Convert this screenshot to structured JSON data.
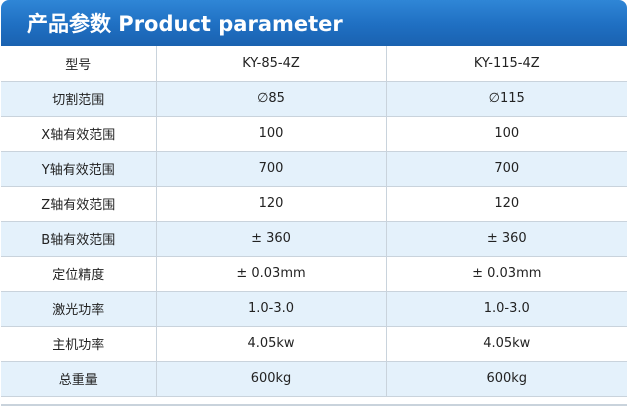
{
  "title": "产品参数 Product parameter",
  "table": {
    "header": [
      "型号",
      "KY-85-4Z",
      "KY-115-4Z"
    ],
    "rows": [
      [
        "切割范围",
        "∅85",
        "∅115"
      ],
      [
        "X轴有效范围",
        "100",
        "100"
      ],
      [
        "Y轴有效范围",
        "700",
        "700"
      ],
      [
        "Z轴有效范围",
        "120",
        "120"
      ],
      [
        "B轴有效范围",
        "± 360",
        "± 360"
      ],
      [
        "定位精度",
        "± 0.03mm",
        "± 0.03mm"
      ],
      [
        "激光功率",
        "1.0-3.0",
        "1.0-3.0"
      ],
      [
        "主机功率",
        "4.05kw",
        "4.05kw"
      ],
      [
        "总重量",
        "600kg",
        "600kg"
      ]
    ]
  },
  "colors": {
    "title_bar": "#1f6fc2",
    "row_alt": "#e4f1fb",
    "border": "#c9d3dc"
  }
}
